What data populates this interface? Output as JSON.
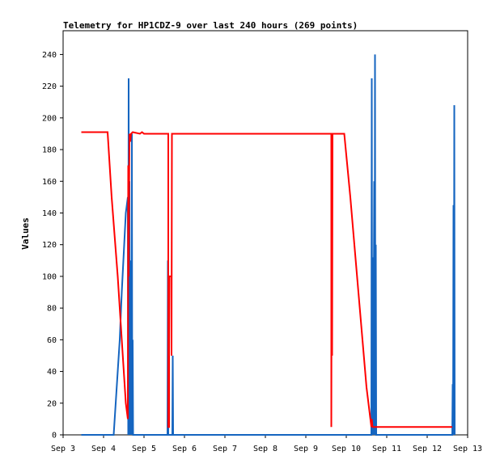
{
  "chart_data": {
    "type": "line",
    "title": "Telemetry for HP1CDZ-9 over last 240 hours (269 points)",
    "xlabel": "",
    "ylabel": "Values",
    "xlim": [
      0,
      10
    ],
    "ylim": [
      0,
      255
    ],
    "x_ticks": [
      {
        "x": 0,
        "label": "Sep 3"
      },
      {
        "x": 1,
        "label": "Sep 4"
      },
      {
        "x": 2,
        "label": "Sep 5"
      },
      {
        "x": 3,
        "label": "Sep 6"
      },
      {
        "x": 4,
        "label": "Sep 7"
      },
      {
        "x": 5,
        "label": "Sep 8"
      },
      {
        "x": 6,
        "label": "Sep 9"
      },
      {
        "x": 7,
        "label": "Sep 10"
      },
      {
        "x": 8,
        "label": "Sep 11"
      },
      {
        "x": 9,
        "label": "Sep 12"
      },
      {
        "x": 10,
        "label": "Sep 13"
      }
    ],
    "y_ticks": [
      0,
      20,
      40,
      60,
      80,
      100,
      120,
      140,
      160,
      180,
      200,
      220,
      240
    ],
    "grid": false,
    "legend": "none",
    "series": [
      {
        "color": "#1565c0",
        "points": [
          [
            0.45,
            0
          ],
          [
            1.25,
            0
          ],
          [
            1.3,
            20
          ],
          [
            1.4,
            60
          ],
          [
            1.45,
            90
          ],
          [
            1.55,
            140
          ],
          [
            1.6,
            150
          ],
          [
            1.61,
            0
          ],
          [
            1.62,
            225
          ],
          [
            1.63,
            0
          ],
          [
            1.64,
            160
          ],
          [
            1.65,
            0
          ],
          [
            1.66,
            110
          ],
          [
            1.67,
            0
          ],
          [
            1.68,
            65
          ],
          [
            1.69,
            0
          ],
          [
            1.7,
            190
          ],
          [
            1.71,
            0
          ],
          [
            1.72,
            60
          ],
          [
            1.73,
            0
          ],
          [
            2.58,
            0
          ],
          [
            2.59,
            110
          ],
          [
            2.6,
            0
          ],
          [
            2.7,
            0
          ],
          [
            2.71,
            50
          ],
          [
            2.72,
            0
          ],
          [
            7.62,
            0
          ],
          [
            7.63,
            225
          ],
          [
            7.64,
            0
          ],
          [
            7.66,
            112
          ],
          [
            7.67,
            0
          ],
          [
            7.69,
            160
          ],
          [
            7.7,
            0
          ],
          [
            7.71,
            240
          ],
          [
            7.72,
            0
          ],
          [
            7.73,
            120
          ],
          [
            7.74,
            0
          ],
          [
            9.62,
            0
          ],
          [
            9.63,
            32
          ],
          [
            9.64,
            0
          ],
          [
            9.65,
            145
          ],
          [
            9.66,
            0
          ],
          [
            9.67,
            208
          ],
          [
            9.68,
            0
          ]
        ]
      },
      {
        "color": "#ff0000",
        "points": [
          [
            0.45,
            191
          ],
          [
            1.1,
            191
          ],
          [
            1.2,
            150
          ],
          [
            1.35,
            100
          ],
          [
            1.45,
            60
          ],
          [
            1.55,
            20
          ],
          [
            1.6,
            10
          ],
          [
            1.61,
            170
          ],
          [
            1.62,
            100
          ],
          [
            1.64,
            190
          ],
          [
            1.66,
            185
          ],
          [
            1.68,
            190
          ],
          [
            1.72,
            191
          ],
          [
            1.9,
            190
          ],
          [
            1.95,
            191
          ],
          [
            2.0,
            190
          ],
          [
            2.6,
            190
          ],
          [
            2.6,
            5
          ],
          [
            2.62,
            5
          ],
          [
            2.62,
            100
          ],
          [
            2.67,
            100
          ],
          [
            2.68,
            50
          ],
          [
            2.69,
            190
          ],
          [
            6.63,
            190
          ],
          [
            6.63,
            5
          ],
          [
            6.64,
            145
          ],
          [
            6.65,
            50
          ],
          [
            6.66,
            190
          ],
          [
            6.72,
            190
          ],
          [
            6.74,
            190
          ],
          [
            6.95,
            190
          ],
          [
            7.1,
            150
          ],
          [
            7.3,
            90
          ],
          [
            7.5,
            30
          ],
          [
            7.62,
            5
          ],
          [
            7.63,
            10
          ],
          [
            7.65,
            5
          ],
          [
            9.62,
            5
          ]
        ]
      }
    ]
  }
}
